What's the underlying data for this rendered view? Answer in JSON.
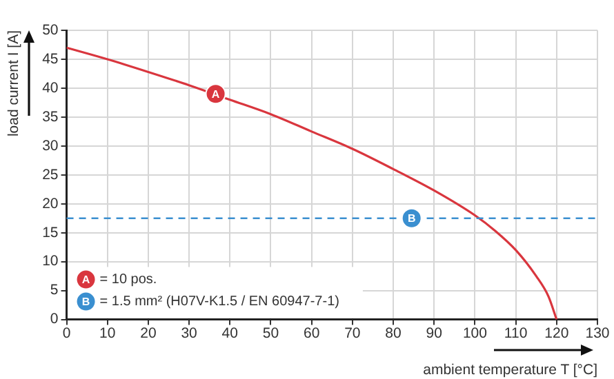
{
  "chart_data": {
    "type": "line",
    "xlabel": "ambient temperature T [°C]",
    "ylabel": "load current I [A]",
    "x": [
      0,
      10,
      20,
      30,
      40,
      50,
      60,
      70,
      80,
      90,
      100,
      105,
      110,
      115,
      118,
      120
    ],
    "series": [
      {
        "color": "#d9363e",
        "values": [
          47,
          45,
          42.8,
          40.5,
          38,
          35.5,
          32.5,
          29.5,
          26,
          22.3,
          18,
          15.3,
          12,
          7.5,
          4,
          0
        ]
      }
    ],
    "xlim": [
      0,
      130
    ],
    "xticks": [
      0,
      10,
      20,
      30,
      40,
      50,
      60,
      70,
      80,
      90,
      100,
      110,
      120,
      130
    ],
    "ylim": [
      0,
      50
    ],
    "yticks": [
      0,
      5,
      10,
      15,
      20,
      25,
      30,
      35,
      40,
      45,
      50
    ],
    "ref_lines": [
      {
        "axis": "y",
        "value": 17.5,
        "color": "#3a8fd0",
        "line_style": "dashed"
      }
    ],
    "annotations": [
      {
        "text": "A",
        "x": 36.5,
        "y": 39
      },
      {
        "text": "B",
        "x": 84.5,
        "y": 17.5
      },
      "= 10 pos.",
      "= 1.5 mm² (H07V-K1.5 / EN 60947-7-1)"
    ],
    "grid": true,
    "legend": false,
    "marker": "none",
    "line_style": "solid"
  }
}
